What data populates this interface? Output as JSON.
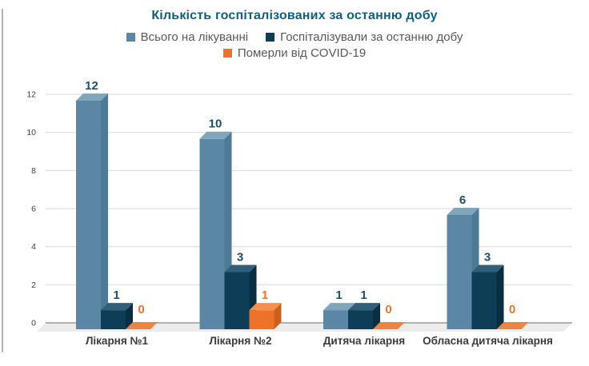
{
  "chart_data": {
    "type": "bar",
    "style": "3d-clustered-column",
    "title": "Кількість госпіталізованих за останню добу",
    "categories": [
      "Лікарня №1",
      "Лікарня №2",
      "Дитяча лікарня",
      "Обласна дитяча лікарня"
    ],
    "series": [
      {
        "name": "Всього на лікуванні",
        "color": "#5b87a5",
        "side_color": "#4d7b97",
        "top_color": "#7fa6bb",
        "values": [
          12,
          10,
          1,
          6
        ]
      },
      {
        "name": "Госпіталізували за останню добу",
        "color": "#0d3d57",
        "side_color": "#0a2e41",
        "top_color": "#2f5f7a",
        "values": [
          1,
          3,
          1,
          3
        ]
      },
      {
        "name": "Померли від COVID-19",
        "color": "#ee7227",
        "side_color": "#cd5f1d",
        "top_color": "#f2924d",
        "zero_color": "#ef8440",
        "values": [
          0,
          1,
          0,
          0
        ]
      }
    ],
    "y_axis": {
      "min": 0,
      "max": 12,
      "tick_step": 2,
      "ticks": [
        0,
        2,
        4,
        6,
        8,
        10,
        12
      ]
    },
    "grid": true,
    "legend_position": "top",
    "legend_rows": [
      [
        0,
        1
      ],
      [
        2
      ]
    ],
    "data_labels": true
  },
  "colors": {
    "title_text": "#115e7e",
    "legend_text": "#595959",
    "value_label_dark": "#1f4e66",
    "value_label_orange": "#e87427",
    "gridline": "#d9d9d9",
    "baseline": "#9a9a9a",
    "floor": "#ececec",
    "axis_text": "#3b3b3b",
    "tick_text": "#404040"
  }
}
